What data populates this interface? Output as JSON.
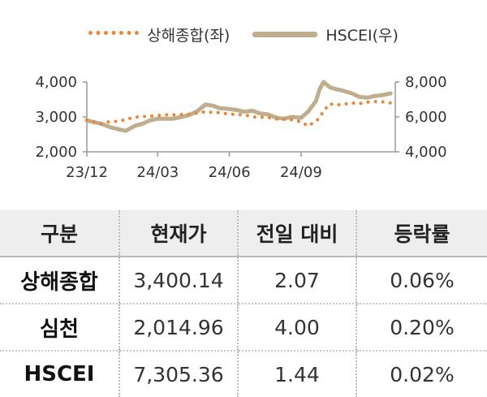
{
  "chart_data": {
    "type": "line",
    "x_ticks": [
      "23/12",
      "24/03",
      "24/06",
      "24/09"
    ],
    "y_left": {
      "ticks": [
        "2,000",
        "3,000",
        "4,000"
      ],
      "lim": [
        2000,
        4000
      ]
    },
    "y_right": {
      "ticks": [
        "4,000",
        "6,000",
        "8,000"
      ],
      "lim": [
        4000,
        8000
      ]
    },
    "legend_position": "top-center",
    "series": [
      {
        "name": "상해종합(좌)",
        "axis": "left",
        "style": "dotted",
        "color": "#e8873a",
        "x": [
          "2023-12-01",
          "2023-12-10",
          "2023-12-20",
          "2024-01-01",
          "2024-01-10",
          "2024-01-20",
          "2024-02-01",
          "2024-02-10",
          "2024-02-20",
          "2024-03-01",
          "2024-03-10",
          "2024-03-20",
          "2024-04-01",
          "2024-04-10",
          "2024-04-20",
          "2024-05-01",
          "2024-05-10",
          "2024-05-20",
          "2024-06-01",
          "2024-06-10",
          "2024-06-20",
          "2024-07-01",
          "2024-07-10",
          "2024-07-20",
          "2024-08-01",
          "2024-08-10",
          "2024-08-20",
          "2024-09-01",
          "2024-09-10",
          "2024-09-20",
          "2024-09-25",
          "2024-09-30",
          "2024-10-08",
          "2024-10-15",
          "2024-10-25",
          "2024-11-05",
          "2024-11-15",
          "2024-11-25",
          "2024-12-05",
          "2024-12-15",
          "2024-12-25"
        ],
        "values": [
          2910,
          2860,
          2800,
          2880,
          2870,
          2930,
          2990,
          3010,
          3020,
          3040,
          3060,
          3060,
          3070,
          3080,
          3110,
          3150,
          3130,
          3120,
          3080,
          3070,
          3060,
          3000,
          2990,
          2990,
          2940,
          2930,
          2920,
          2860,
          2740,
          2870,
          2980,
          3180,
          3380,
          3340,
          3360,
          3400,
          3380,
          3420,
          3440,
          3430,
          3400
        ]
      },
      {
        "name": "HSCEI(우)",
        "axis": "right",
        "style": "solid",
        "color": "#bfae8e",
        "x": [
          "2023-12-01",
          "2023-12-10",
          "2023-12-20",
          "2024-01-01",
          "2024-01-10",
          "2024-01-20",
          "2024-02-01",
          "2024-02-10",
          "2024-02-20",
          "2024-03-01",
          "2024-03-10",
          "2024-03-20",
          "2024-04-01",
          "2024-04-10",
          "2024-04-20",
          "2024-05-01",
          "2024-05-10",
          "2024-05-20",
          "2024-06-01",
          "2024-06-10",
          "2024-06-20",
          "2024-07-01",
          "2024-07-10",
          "2024-07-20",
          "2024-08-01",
          "2024-08-10",
          "2024-08-20",
          "2024-09-01",
          "2024-09-10",
          "2024-09-20",
          "2024-09-25",
          "2024-09-30",
          "2024-10-08",
          "2024-10-15",
          "2024-10-25",
          "2024-11-05",
          "2024-11-15",
          "2024-11-25",
          "2024-12-05",
          "2024-12-15",
          "2024-12-25"
        ],
        "values": [
          5800,
          5700,
          5600,
          5400,
          5300,
          5200,
          5500,
          5600,
          5800,
          5900,
          5900,
          5900,
          6000,
          6100,
          6300,
          6700,
          6650,
          6500,
          6450,
          6400,
          6300,
          6350,
          6200,
          6150,
          5950,
          5900,
          6000,
          5950,
          6300,
          6900,
          7600,
          8000,
          7700,
          7600,
          7500,
          7350,
          7150,
          7100,
          7200,
          7250,
          7350
        ]
      }
    ]
  },
  "table": {
    "headers": [
      "구분",
      "현재가",
      "전일 대비",
      "등락률"
    ],
    "rows": [
      {
        "name": "상해종합",
        "price": "3,400.14",
        "change": "2.07",
        "rate": "0.06%"
      },
      {
        "name": "심천",
        "price": "2,014.96",
        "change": "4.00",
        "rate": "0.20%"
      },
      {
        "name": "HSCEI",
        "price": "7,305.36",
        "change": "1.44",
        "rate": "0.02%"
      }
    ]
  }
}
